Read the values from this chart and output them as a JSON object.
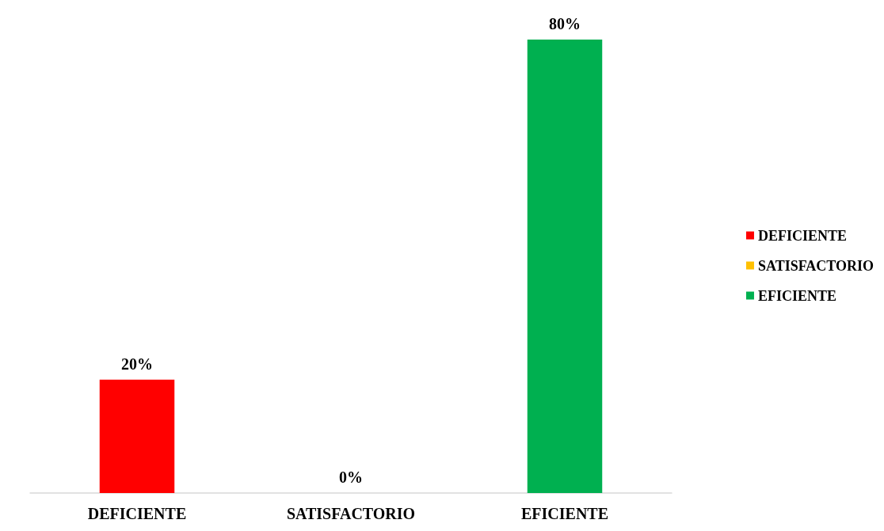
{
  "chart_data": {
    "type": "bar",
    "categories": [
      "DEFICIENTE",
      "SATISFACTORIO",
      "EFICIENTE"
    ],
    "stacked": true,
    "series": [
      {
        "name": "DEFICIENTE",
        "color": "#ff0000",
        "values": [
          20,
          null,
          null
        ],
        "value_labels": [
          "20%",
          null,
          null
        ]
      },
      {
        "name": "SATISFACTORIO",
        "color": "#ffc000",
        "values": [
          null,
          0,
          null
        ],
        "value_labels": [
          null,
          "0%",
          null
        ]
      },
      {
        "name": "EFICIENTE",
        "color": "#00b050",
        "values": [
          null,
          null,
          80
        ],
        "value_labels": [
          null,
          null,
          "80%"
        ]
      }
    ],
    "legend": "right"
  }
}
